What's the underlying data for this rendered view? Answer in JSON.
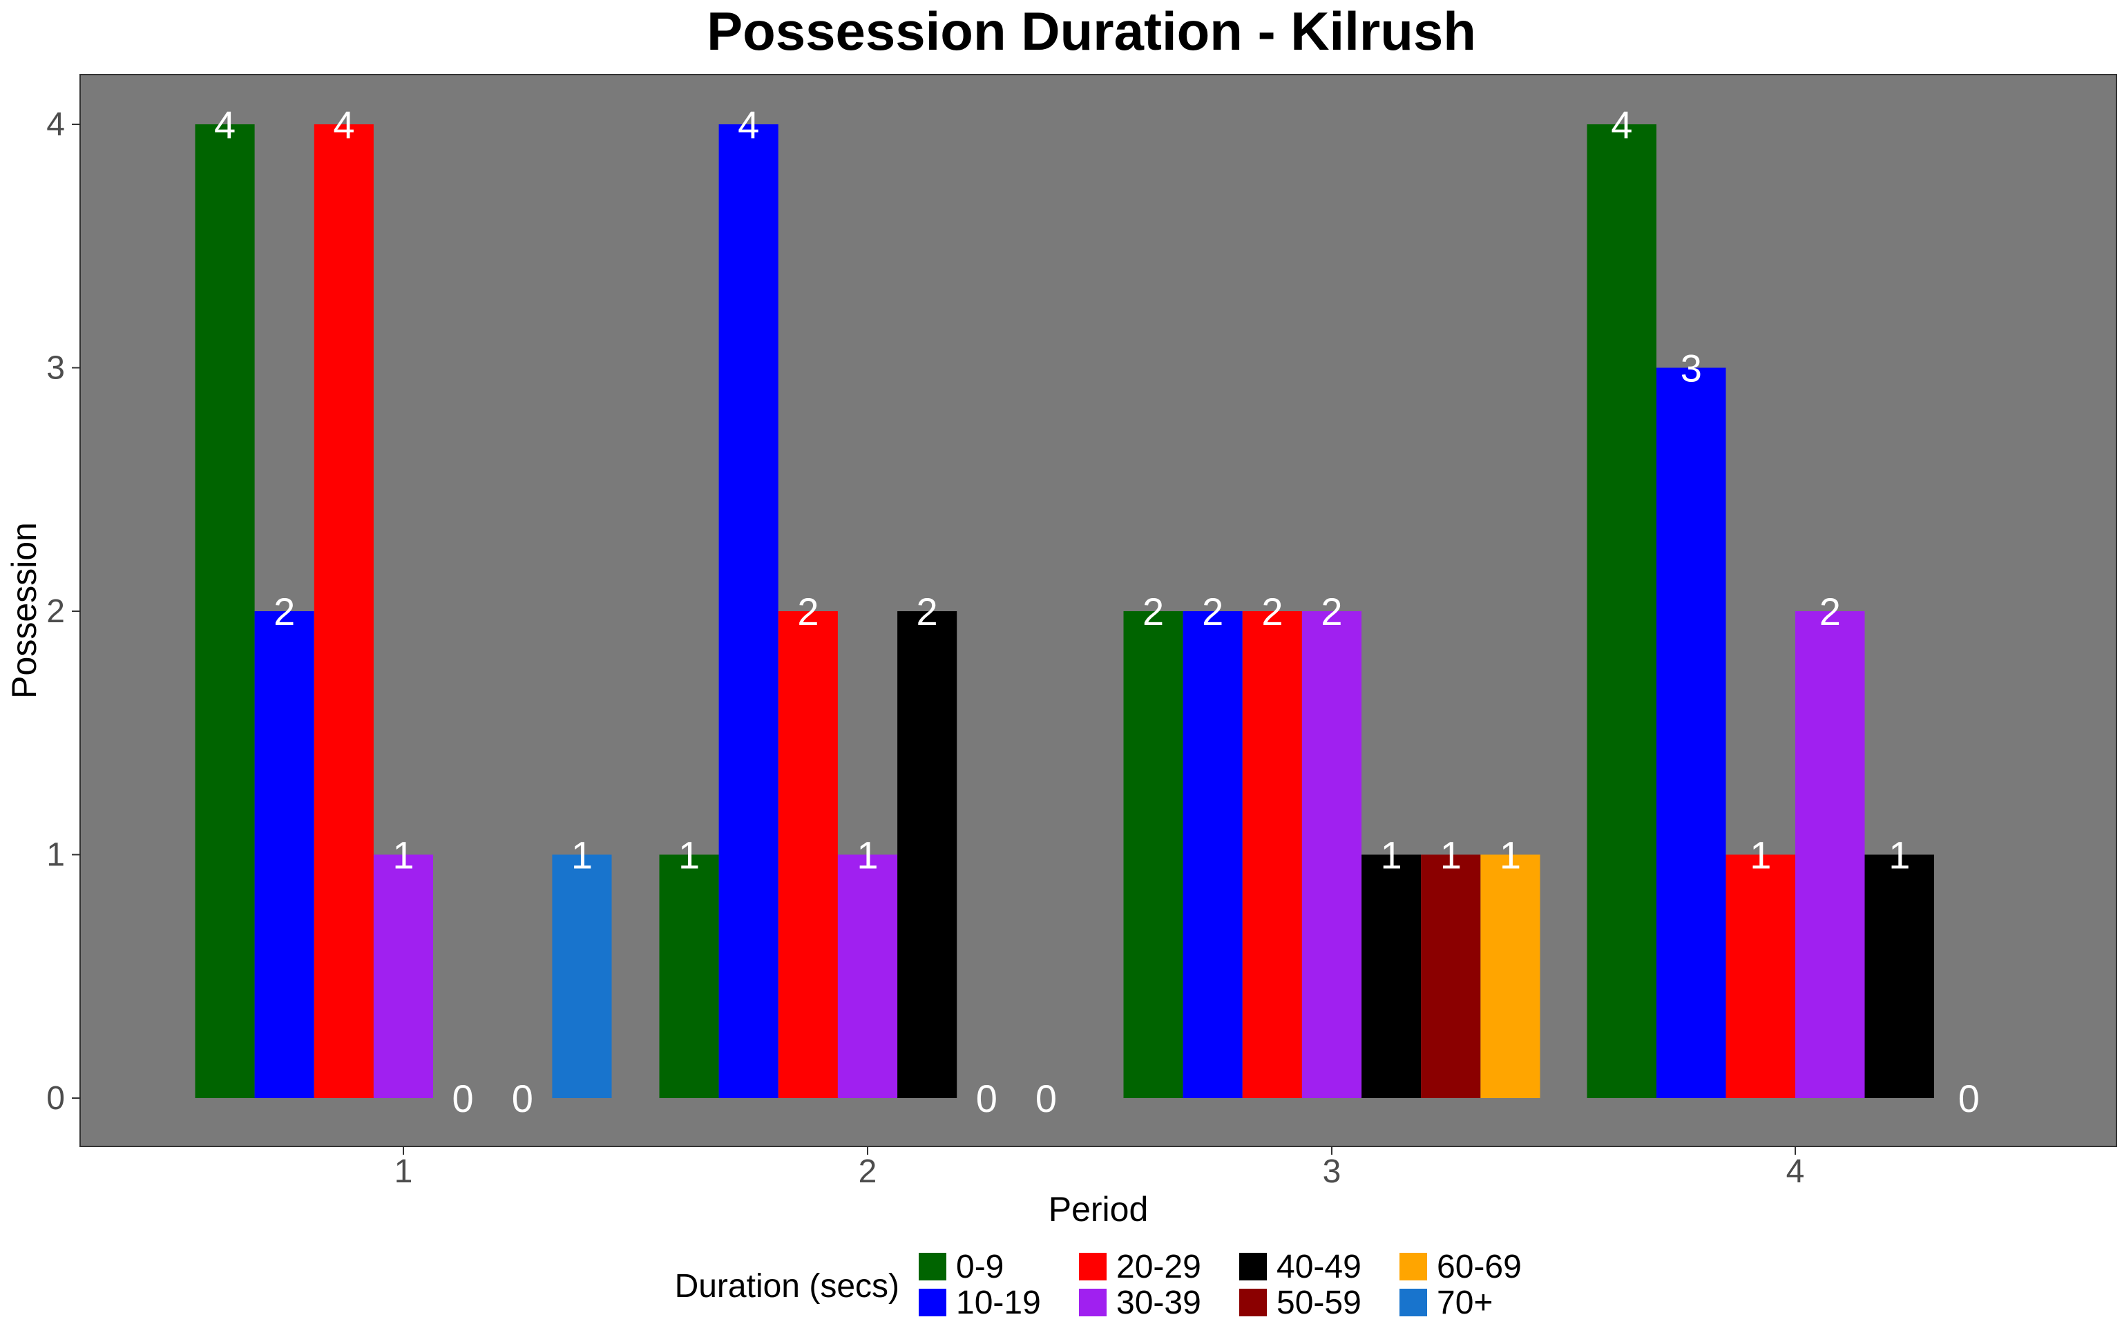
{
  "chart_data": {
    "type": "bar",
    "title": "Possession Duration - Kilrush",
    "xlabel": "Period",
    "ylabel": "Possession",
    "ylim": [
      0,
      4
    ],
    "yticks": [
      "0",
      "1",
      "2",
      "3",
      "4"
    ],
    "periods": [
      {
        "label": "1",
        "bars": [
          {
            "category": "0-9",
            "value": 4
          },
          {
            "category": "10-19",
            "value": 2
          },
          {
            "category": "20-29",
            "value": 4
          },
          {
            "category": "30-39",
            "value": 1
          },
          {
            "category": "40-49",
            "value": 0
          },
          {
            "category": "50-59",
            "value": 0
          },
          {
            "category": "70+",
            "value": 1
          }
        ]
      },
      {
        "label": "2",
        "bars": [
          {
            "category": "0-9",
            "value": 1
          },
          {
            "category": "10-19",
            "value": 4
          },
          {
            "category": "20-29",
            "value": 2
          },
          {
            "category": "30-39",
            "value": 1
          },
          {
            "category": "40-49",
            "value": 2
          },
          {
            "category": "50-59",
            "value": 0
          },
          {
            "category": "70+",
            "value": 0
          }
        ]
      },
      {
        "label": "3",
        "bars": [
          {
            "category": "0-9",
            "value": 2
          },
          {
            "category": "10-19",
            "value": 2
          },
          {
            "category": "20-29",
            "value": 2
          },
          {
            "category": "30-39",
            "value": 2
          },
          {
            "category": "40-49",
            "value": 1
          },
          {
            "category": "50-59",
            "value": 1
          },
          {
            "category": "60-69",
            "value": 1
          }
        ]
      },
      {
        "label": "4",
        "bars": [
          {
            "category": "0-9",
            "value": 4
          },
          {
            "category": "10-19",
            "value": 3
          },
          {
            "category": "20-29",
            "value": 1
          },
          {
            "category": "30-39",
            "value": 2
          },
          {
            "category": "40-49",
            "value": 1
          },
          {
            "category": "50-59",
            "value": 0
          }
        ]
      }
    ],
    "legend": {
      "title": "Duration (secs)",
      "position": "bottom",
      "items": [
        {
          "label": "0-9",
          "color": "#006400"
        },
        {
          "label": "10-19",
          "color": "#0000ff"
        },
        {
          "label": "20-29",
          "color": "#ff0000"
        },
        {
          "label": "30-39",
          "color": "#a020f0"
        },
        {
          "label": "40-49",
          "color": "#000000"
        },
        {
          "label": "50-59",
          "color": "#8b0000"
        },
        {
          "label": "60-69",
          "color": "#ffa500"
        },
        {
          "label": "70+",
          "color": "#1874cd"
        }
      ]
    },
    "panel_background": "#7a7a7a",
    "grid": false
  }
}
